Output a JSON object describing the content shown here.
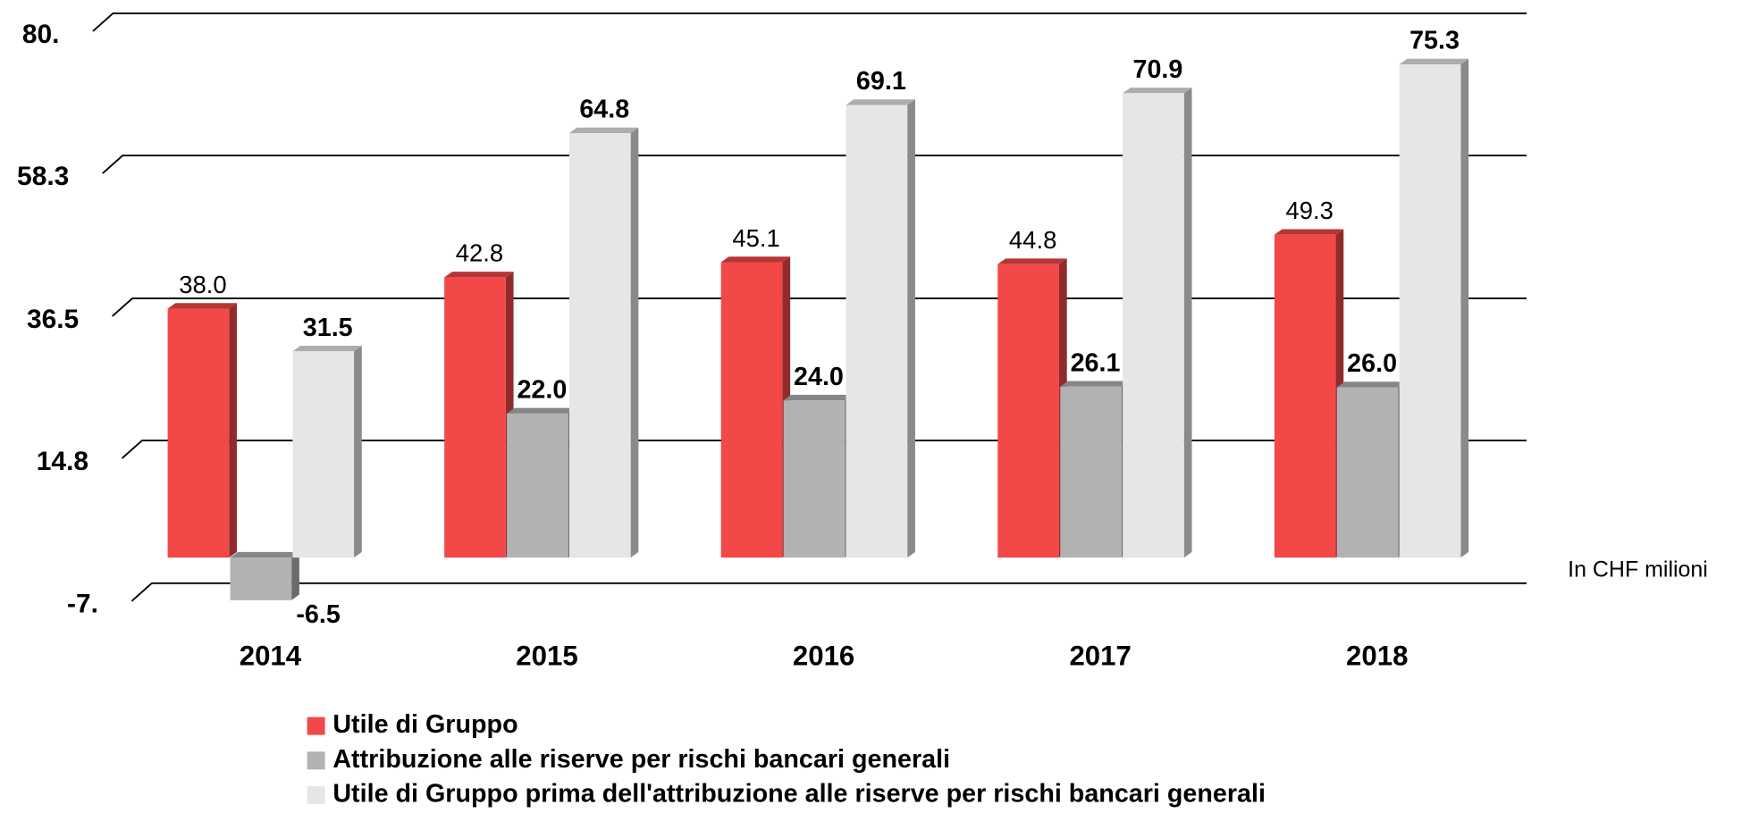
{
  "chart_data": {
    "type": "bar3d",
    "categories": [
      "2014",
      "2015",
      "2016",
      "2017",
      "2018"
    ],
    "series": [
      {
        "name": "Utile di Gruppo",
        "color": "#f24848",
        "values": [
          38,
          42.8,
          45.1,
          44.8,
          49.3
        ],
        "value_labels": [
          "38.0",
          "42.8",
          "45.1",
          "44.8",
          "49.3"
        ]
      },
      {
        "name": "Attribuzione alle riserve per rischi bancari generali",
        "color": "#b2b2b2",
        "values": [
          -6.5,
          22,
          24,
          26.1,
          26
        ],
        "value_labels": [
          "-6.5",
          "22.0",
          "24.0",
          "26.1",
          "26.0"
        ]
      },
      {
        "name": "Utile di Gruppo prima dell'attribuzione alle riserve per rischi bancari generali",
        "color": "#e6e6e6",
        "values": [
          31.5,
          64.8,
          69.1,
          70.9,
          75.3
        ],
        "value_labels": [
          "31.5",
          "64.8",
          "69.1",
          "70.9",
          "75.3"
        ]
      }
    ],
    "ylim": [
      -7,
      80
    ],
    "yticks": [
      {
        "value": -7,
        "label": "-7."
      },
      14.8,
      36.5,
      58.3,
      {
        "value": 80,
        "label": "80."
      }
    ],
    "grid": true,
    "annotation": "In CHF milioni"
  }
}
